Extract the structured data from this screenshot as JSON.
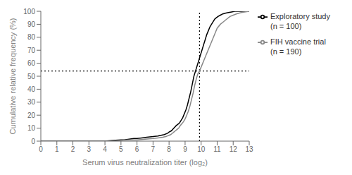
{
  "chart_data": {
    "type": "line",
    "xlabel": "Serum virus neutralization titer (log₂)",
    "ylabel": "Cumulative relative frequency (%)",
    "xlim": [
      0,
      13
    ],
    "ylim": [
      0,
      100
    ],
    "xticks": [
      0,
      1,
      2,
      3,
      4,
      5,
      6,
      7,
      8,
      9,
      10,
      11,
      12,
      13
    ],
    "yticks": [
      0,
      10,
      20,
      30,
      40,
      50,
      60,
      70,
      80,
      90,
      100
    ],
    "grid": false,
    "legend": "right",
    "reference_lines": [
      {
        "axis": "y",
        "value": 54,
        "color": "#000000",
        "line_style": "dotted"
      },
      {
        "axis": "x",
        "value": 9.9,
        "color": "#000000",
        "line_style": "dotted"
      }
    ],
    "series": [
      {
        "name": "Exploratory study\n(n = 100)",
        "color": "#000000",
        "line_style": "solid",
        "x": [
          0,
          4.0,
          4.5,
          5.0,
          5.2,
          5.5,
          5.8,
          6.0,
          6.3,
          6.6,
          7.0,
          7.3,
          7.5,
          7.7,
          7.9,
          8.0,
          8.15,
          8.3,
          8.45,
          8.55,
          8.65,
          8.75,
          8.85,
          8.95,
          9.05,
          9.15,
          9.25,
          9.35,
          9.45,
          9.55,
          9.65,
          9.75,
          9.85,
          9.95,
          10.05,
          10.15,
          10.25,
          10.35,
          10.45,
          10.55,
          10.65,
          10.75,
          10.85,
          10.95,
          11.05,
          11.2,
          11.35,
          11.5,
          11.7,
          11.9,
          12.1,
          12.3,
          12.6,
          13.0
        ],
        "values": [
          0,
          0,
          0.5,
          1,
          1,
          1.5,
          2,
          2,
          2.5,
          3,
          3.5,
          4,
          4.5,
          5,
          6,
          7,
          8,
          10,
          12,
          13,
          14,
          16,
          18,
          21,
          24,
          28,
          33,
          38,
          44,
          50,
          54,
          58,
          62,
          66,
          70,
          74,
          78,
          82,
          85,
          88,
          90,
          92,
          94,
          95,
          96,
          97,
          98,
          98.5,
          99,
          99.5,
          100,
          100,
          100,
          100
        ]
      },
      {
        "name": "FIH vaccine trial\n(n = 190)",
        "color": "#888888",
        "line_style": "solid",
        "x": [
          0,
          4.5,
          5.0,
          5.5,
          6.0,
          6.5,
          7.0,
          7.3,
          7.6,
          7.8,
          7.9,
          8.0,
          8.1,
          8.2,
          8.3,
          8.4,
          8.5,
          8.6,
          8.7,
          8.8,
          8.9,
          9.0,
          9.1,
          9.2,
          9.3,
          9.4,
          9.5,
          9.6,
          9.7,
          9.8,
          9.9,
          10.0,
          10.1,
          10.2,
          10.3,
          10.4,
          10.5,
          10.6,
          10.7,
          10.8,
          10.9,
          11.0,
          11.2,
          11.4,
          11.6,
          11.8,
          12.0,
          12.2,
          12.5,
          13.0
        ],
        "values": [
          0,
          0,
          0.5,
          1,
          1,
          1.5,
          2,
          2.5,
          3,
          3.5,
          4,
          4.5,
          5,
          6,
          7,
          8,
          9,
          10,
          12,
          13.5,
          15,
          17,
          20,
          23,
          27,
          32,
          37,
          43,
          48,
          52,
          54,
          57,
          60,
          63,
          66,
          69,
          72,
          75,
          78,
          81,
          84,
          87,
          90,
          92,
          94,
          96,
          97,
          98,
          99,
          100
        ]
      }
    ]
  }
}
